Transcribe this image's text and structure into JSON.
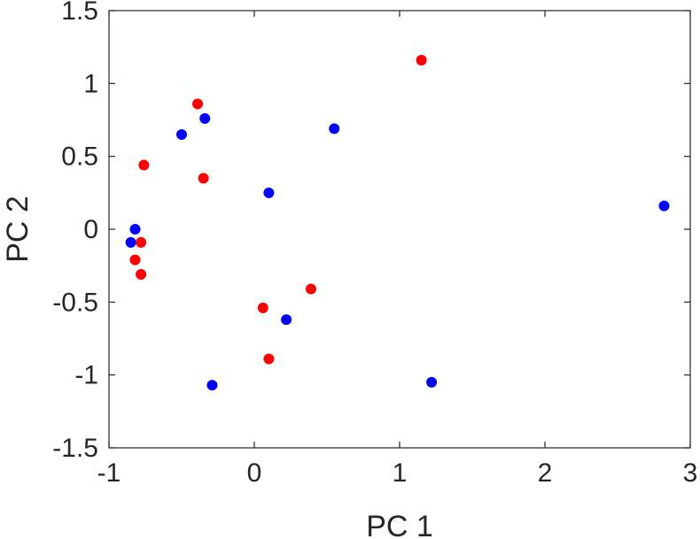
{
  "chart_data": {
    "type": "scatter",
    "title": "",
    "xlabel": "PC 1",
    "ylabel": "PC 2",
    "xlim": [
      -1,
      3
    ],
    "ylim": [
      -1.5,
      1.5
    ],
    "x_ticks": [
      -1,
      0,
      1,
      2,
      3
    ],
    "y_ticks": [
      -1.5,
      -1,
      -0.5,
      0,
      0.5,
      1,
      1.5
    ],
    "x_tick_labels": [
      "-1",
      "0",
      "1",
      "2",
      "3"
    ],
    "y_tick_labels": [
      "-1.5",
      "-1",
      "-0.5",
      "0",
      "0.5",
      "1",
      "1.5"
    ],
    "grid": false,
    "legend": "none",
    "series": [
      {
        "color": "#0000ff",
        "x": [
          -0.82,
          -0.85,
          -0.5,
          -0.34,
          0.1,
          0.55,
          2.82,
          0.22,
          -0.29,
          1.22
        ],
        "y": [
          0.0,
          -0.09,
          0.65,
          0.76,
          0.25,
          0.69,
          0.16,
          -0.62,
          -1.07,
          -1.05
        ]
      },
      {
        "color": "#ff0000",
        "x": [
          -0.39,
          -0.76,
          -0.35,
          -0.78,
          -0.82,
          -0.78,
          1.15,
          0.39,
          0.06,
          0.1
        ],
        "y": [
          0.86,
          0.44,
          0.35,
          -0.09,
          -0.21,
          -0.31,
          1.16,
          -0.41,
          -0.54,
          -0.89
        ]
      }
    ]
  }
}
